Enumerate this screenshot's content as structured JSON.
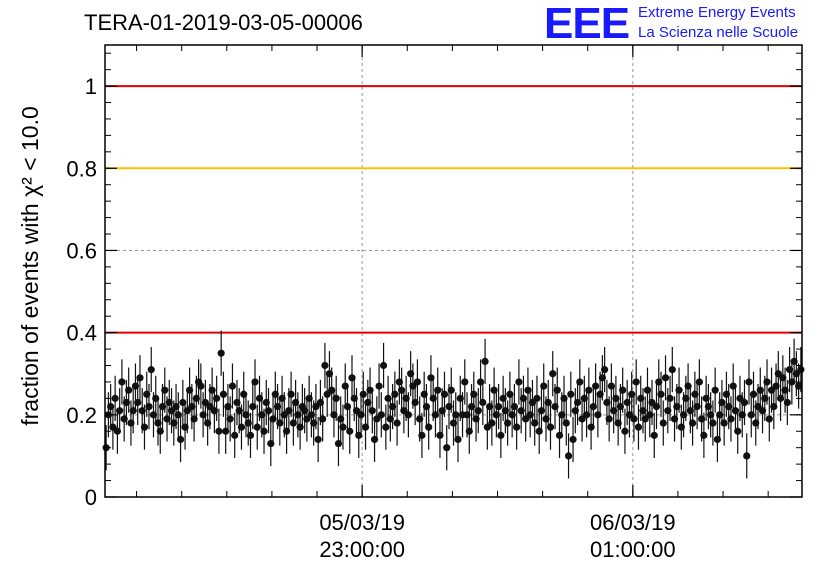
{
  "title": "TERA-01-2019-03-05-00006",
  "logo": {
    "mark": "EEE",
    "line1": "Extreme Energy Events",
    "line2": "La Scienza nelle Scuole"
  },
  "colors": {
    "points": "#111111",
    "threshold_red": "#e00000",
    "threshold_yellow": "#ffc000",
    "grid": "#999999",
    "logo": "#1a1aff"
  },
  "chart_data": {
    "type": "scatter",
    "title": "TERA-01-2019-03-05-00006",
    "ylabel": "fraction of events with χ² < 10.0",
    "ylim": [
      0,
      1.1
    ],
    "yticks": [
      "0",
      "0.2",
      "0.4",
      "0.6",
      "0.8",
      "1"
    ],
    "xlim": [
      "2019-03-05T21:06:00",
      "2019-03-06T02:15:00"
    ],
    "xtick_labels": [
      {
        "date": "05/03/19",
        "time": "23:00:00"
      },
      {
        "date": "06/03/19",
        "time": "01:00:00"
      }
    ],
    "grid": true,
    "reference_lines": [
      {
        "y": 1.0,
        "color": "red"
      },
      {
        "y": 0.8,
        "color": "yellow"
      },
      {
        "y": 0.4,
        "color": "red"
      }
    ],
    "series": [
      {
        "style": "points with error bars",
        "error": 0.055,
        "y": [
          0.12,
          0.2,
          0.22,
          0.17,
          0.24,
          0.16,
          0.21,
          0.28,
          0.19,
          0.23,
          0.26,
          0.18,
          0.21,
          0.27,
          0.23,
          0.29,
          0.21,
          0.17,
          0.25,
          0.22,
          0.31,
          0.2,
          0.24,
          0.18,
          0.16,
          0.22,
          0.26,
          0.19,
          0.23,
          0.21,
          0.18,
          0.22,
          0.2,
          0.14,
          0.23,
          0.17,
          0.21,
          0.26,
          0.22,
          0.19,
          0.24,
          0.28,
          0.27,
          0.2,
          0.23,
          0.18,
          0.22,
          0.26,
          0.21,
          0.24,
          0.16,
          0.35,
          0.25,
          0.16,
          0.22,
          0.19,
          0.27,
          0.15,
          0.23,
          0.21,
          0.17,
          0.25,
          0.2,
          0.18,
          0.15,
          0.22,
          0.28,
          0.17,
          0.24,
          0.2,
          0.16,
          0.23,
          0.21,
          0.13,
          0.19,
          0.25,
          0.22,
          0.18,
          0.24,
          0.2,
          0.16,
          0.21,
          0.25,
          0.18,
          0.23,
          0.2,
          0.17,
          0.22,
          0.21,
          0.19,
          0.24,
          0.2,
          0.18,
          0.22,
          0.14,
          0.23,
          0.19,
          0.32,
          0.25,
          0.3,
          0.26,
          0.2,
          0.24,
          0.13,
          0.19,
          0.17,
          0.27,
          0.22,
          0.16,
          0.29,
          0.24,
          0.21,
          0.15,
          0.2,
          0.25,
          0.17,
          0.23,
          0.26,
          0.21,
          0.14,
          0.19,
          0.27,
          0.2,
          0.32,
          0.17,
          0.24,
          0.19,
          0.22,
          0.25,
          0.18,
          0.28,
          0.26,
          0.21,
          0.24,
          0.2,
          0.3,
          0.27,
          0.23,
          0.28,
          0.19,
          0.15,
          0.25,
          0.22,
          0.17,
          0.29,
          0.24,
          0.2,
          0.26,
          0.15,
          0.21,
          0.25,
          0.12,
          0.22,
          0.26,
          0.18,
          0.2,
          0.14,
          0.24,
          0.2,
          0.28,
          0.2,
          0.16,
          0.22,
          0.25,
          0.19,
          0.21,
          0.28,
          0.23,
          0.33,
          0.17,
          0.22,
          0.18,
          0.26,
          0.2,
          0.22,
          0.15,
          0.24,
          0.21,
          0.18,
          0.25,
          0.2,
          0.22,
          0.17,
          0.28,
          0.21,
          0.24,
          0.19,
          0.26,
          0.2,
          0.23,
          0.18,
          0.24,
          0.16,
          0.21,
          0.27,
          0.19,
          0.23,
          0.17,
          0.3,
          0.22,
          0.26,
          0.15,
          0.2,
          0.24,
          0.18,
          0.1,
          0.25,
          0.14,
          0.21,
          0.23,
          0.28,
          0.19,
          0.24,
          0.2,
          0.26,
          0.17,
          0.22,
          0.27,
          0.2,
          0.25,
          0.29,
          0.31,
          0.23,
          0.19,
          0.27,
          0.21,
          0.24,
          0.18,
          0.22,
          0.26,
          0.16,
          0.23,
          0.2,
          0.25,
          0.19,
          0.28,
          0.17,
          0.24,
          0.21,
          0.19,
          0.26,
          0.2,
          0.23,
          0.15,
          0.22,
          0.28,
          0.25,
          0.18,
          0.29,
          0.21,
          0.24,
          0.31,
          0.19,
          0.22,
          0.26,
          0.17,
          0.2,
          0.24,
          0.27,
          0.21,
          0.18,
          0.25,
          0.22,
          0.28,
          0.19,
          0.15,
          0.24,
          0.22,
          0.2,
          0.18,
          0.26,
          0.14,
          0.2,
          0.23,
          0.18,
          0.25,
          0.22,
          0.19,
          0.27,
          0.21,
          0.16,
          0.24,
          0.2,
          0.23,
          0.1,
          0.28,
          0.2,
          0.25,
          0.18,
          0.22,
          0.26,
          0.21,
          0.24,
          0.28,
          0.19,
          0.26,
          0.22,
          0.27,
          0.3,
          0.24,
          0.29,
          0.26,
          0.23,
          0.31,
          0.28,
          0.33,
          0.3,
          0.27,
          0.31
        ]
      }
    ]
  }
}
